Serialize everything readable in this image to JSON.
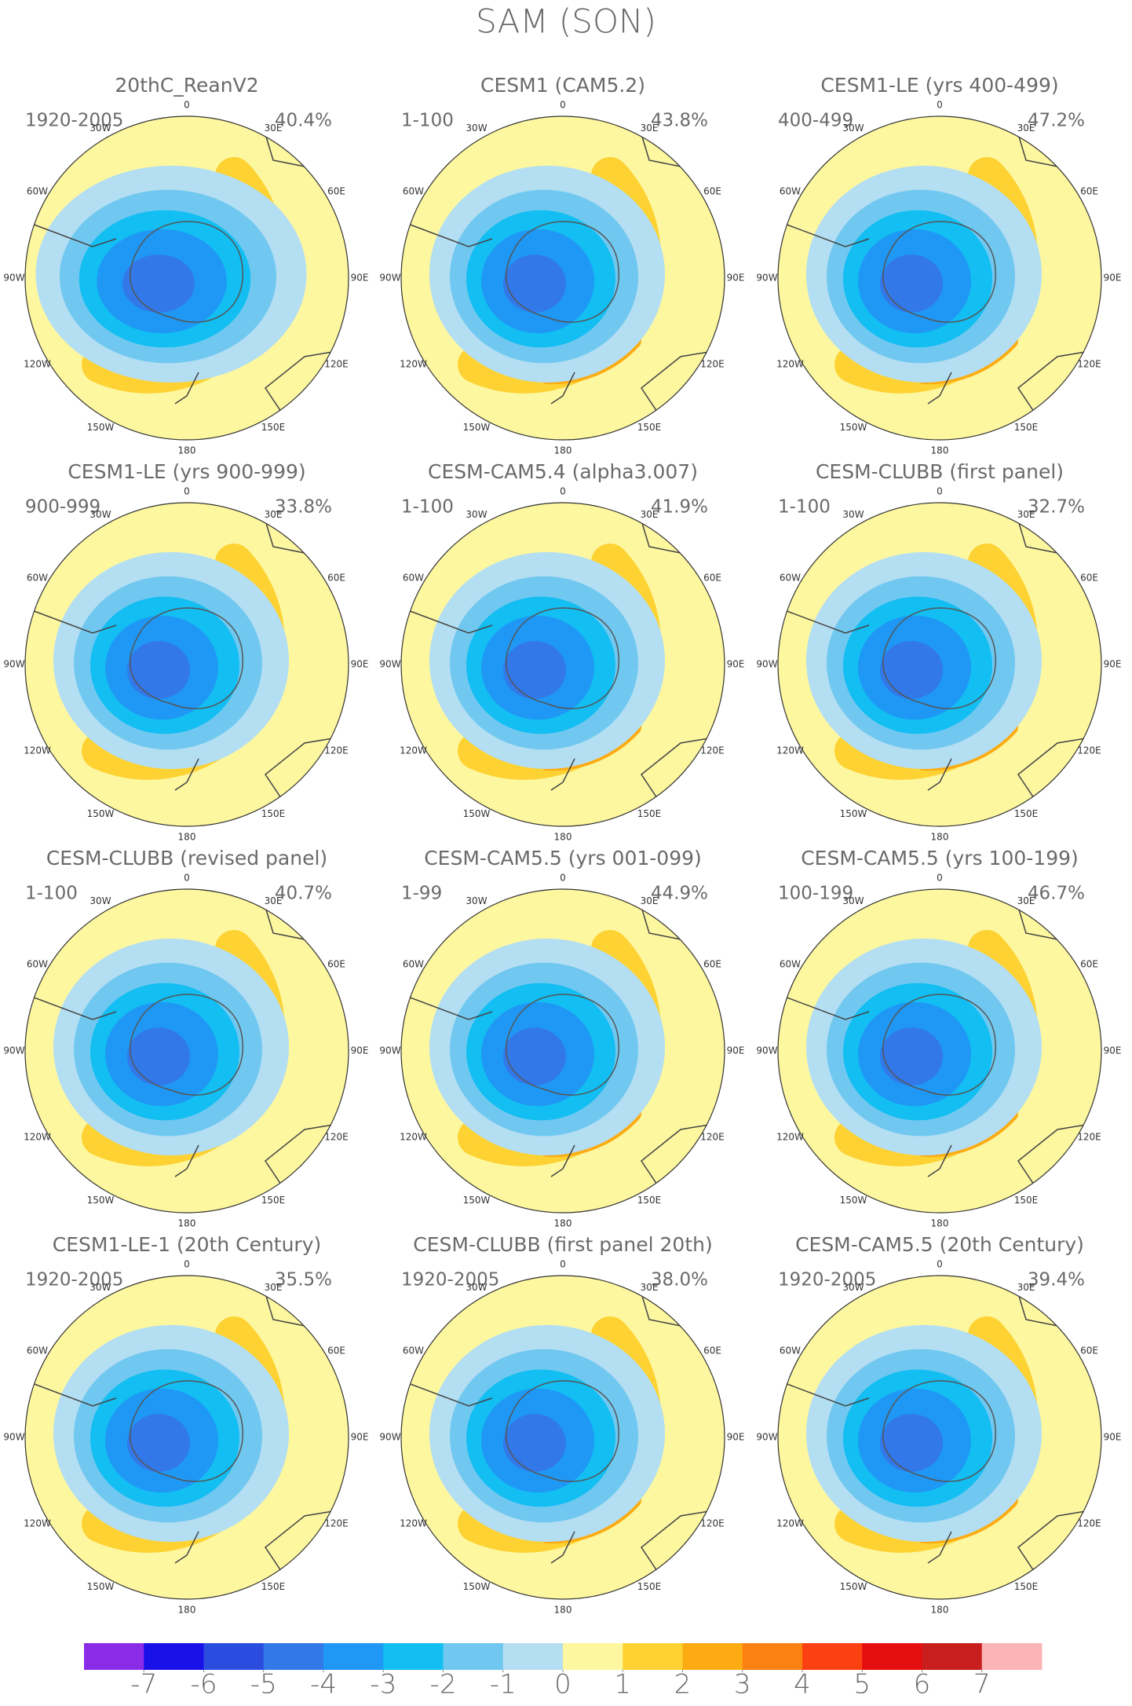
{
  "title": "SAM (SON)",
  "panels": [
    {
      "title": "20thC_ReanV2",
      "period": "1920-2005",
      "variance": "40.4%"
    },
    {
      "title": "CESM1 (CAM5.2)",
      "period": "1-100",
      "variance": "43.8%"
    },
    {
      "title": "CESM1-LE (yrs 400-499)",
      "period": "400-499",
      "variance": "47.2%"
    },
    {
      "title": "CESM1-LE (yrs 900-999)",
      "period": "900-999",
      "variance": "33.8%"
    },
    {
      "title": "CESM-CAM5.4 (alpha3.007)",
      "period": "1-100",
      "variance": "41.9%"
    },
    {
      "title": "CESM-CLUBB (first panel)",
      "period": "1-100",
      "variance": "32.7%"
    },
    {
      "title": "CESM-CLUBB (revised panel)",
      "period": "1-100",
      "variance": "40.7%"
    },
    {
      "title": "CESM-CAM5.5 (yrs 001-099)",
      "period": "1-99",
      "variance": "44.9%"
    },
    {
      "title": "CESM-CAM5.5 (yrs 100-199)",
      "period": "100-199",
      "variance": "46.7%"
    },
    {
      "title": "CESM1-LE-1 (20th Century)",
      "period": "1920-2005",
      "variance": "35.5%"
    },
    {
      "title": "CESM-CLUBB (first panel 20th)",
      "period": "1920-2005",
      "variance": "38.0%"
    },
    {
      "title": "CESM-CAM5.5 (20th Century)",
      "period": "1920-2005",
      "variance": "39.4%"
    }
  ],
  "lon_labels": [
    "0",
    "30E",
    "60E",
    "90E",
    "120E",
    "150E",
    "180",
    "150W",
    "120W",
    "90W",
    "60W",
    "30W"
  ],
  "colorbar": {
    "colors": [
      "#8a2be8",
      "#1a10e8",
      "#2a4de0",
      "#3278e8",
      "#1f98f5",
      "#12bef2",
      "#70c8f0",
      "#b4def2",
      "#fdf7a0",
      "#fdd232",
      "#fcac12",
      "#fb8212",
      "#fb4012",
      "#e60e0e",
      "#c81e1e",
      "#fdb4b4"
    ],
    "ticks": [
      -7,
      -6,
      -5,
      -4,
      -3,
      -2,
      -1,
      0,
      1,
      2,
      3,
      4,
      5,
      6,
      7
    ]
  }
}
